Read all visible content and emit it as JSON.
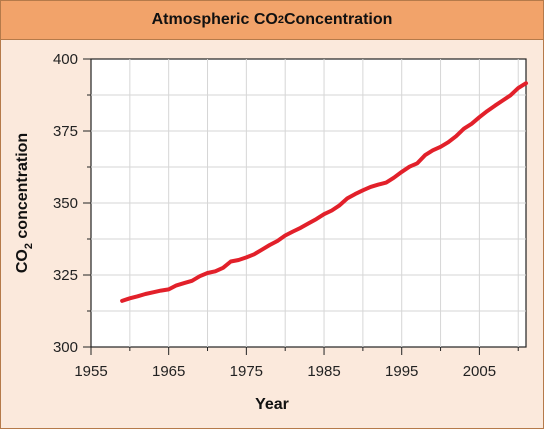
{
  "chart_data": {
    "type": "line",
    "title": "Atmospheric CO",
    "title_subscript": "2",
    "title_suffix": " Concentration",
    "xlabel": "Year",
    "ylabel": "CO",
    "ylabel_subscript": "2",
    "ylabel_suffix": " concentration",
    "xlim": [
      1955,
      2011
    ],
    "ylim": [
      300,
      400
    ],
    "xticks": [
      1955,
      1965,
      1975,
      1985,
      1995,
      2005
    ],
    "yticks": [
      300,
      325,
      350,
      375,
      400
    ],
    "grid": true,
    "series": [
      {
        "color": "#e2202a",
        "x": [
          1959,
          1960,
          1961,
          1962,
          1963,
          1964,
          1965,
          1966,
          1967,
          1968,
          1969,
          1970,
          1971,
          1972,
          1973,
          1974,
          1975,
          1976,
          1977,
          1978,
          1979,
          1980,
          1981,
          1982,
          1983,
          1984,
          1985,
          1986,
          1987,
          1988,
          1989,
          1990,
          1991,
          1992,
          1993,
          1994,
          1995,
          1996,
          1997,
          1998,
          1999,
          2000,
          2001,
          2002,
          2003,
          2004,
          2005,
          2006,
          2007,
          2008,
          2009,
          2010,
          2011
        ],
        "values": [
          316.0,
          316.9,
          317.6,
          318.4,
          319.0,
          319.6,
          320.0,
          321.4,
          322.2,
          323.0,
          324.6,
          325.7,
          326.3,
          327.5,
          329.7,
          330.2,
          331.1,
          332.2,
          333.8,
          335.4,
          336.8,
          338.7,
          340.1,
          341.4,
          342.9,
          344.4,
          346.1,
          347.4,
          349.2,
          351.6,
          353.1,
          354.4,
          355.6,
          356.4,
          357.1,
          358.8,
          360.8,
          362.6,
          363.8,
          366.6,
          368.3,
          369.5,
          371.1,
          373.2,
          375.8,
          377.5,
          379.8,
          381.9,
          383.8,
          385.6,
          387.4,
          389.9,
          391.6
        ]
      }
    ]
  }
}
